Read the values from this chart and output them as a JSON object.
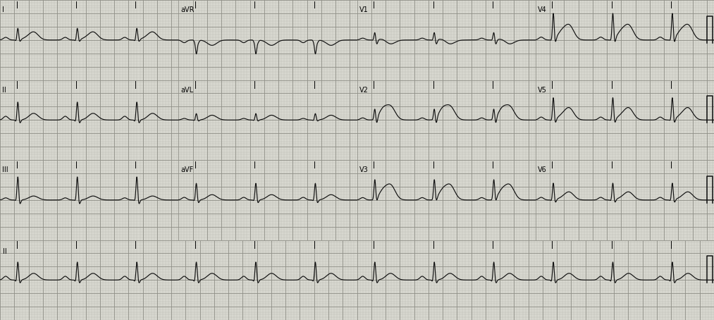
{
  "fig_width": 10.13,
  "fig_height": 4.54,
  "dpi": 100,
  "bg_color": "#d8d8d0",
  "minor_grid_color": "#b8b8b0",
  "major_grid_color": "#909088",
  "ecg_color": "#111111",
  "ecg_linewidth": 0.85,
  "hr": 72,
  "fs": 500,
  "seg_duration": 2.5,
  "rhythm_duration": 10.0,
  "y_range": 1.5,
  "label_fontsize": 7,
  "minor_grid_lw": 0.25,
  "major_grid_lw": 0.6,
  "leads_layout": [
    [
      "I",
      "aVR",
      "V1",
      "V4"
    ],
    [
      "II",
      "aVL",
      "V2",
      "V5"
    ],
    [
      "III",
      "aVF",
      "V3",
      "V6"
    ],
    [
      "II"
    ]
  ],
  "lead_params": {
    "I": {
      "qrs": 0.45,
      "p": 0.1,
      "t": 0.3,
      "st": 0.05,
      "t_inv": false,
      "deep_s": false,
      "q": 0.05
    },
    "II": {
      "qrs": 0.7,
      "p": 0.14,
      "t": 0.25,
      "st": 0.0,
      "t_inv": false,
      "deep_s": false,
      "q": 0.08
    },
    "III": {
      "qrs": 0.9,
      "p": 0.08,
      "t": 0.15,
      "st": 0.0,
      "t_inv": false,
      "deep_s": false,
      "q": 0.05
    },
    "aVR": {
      "qrs": -0.5,
      "p": -0.1,
      "t": -0.2,
      "st": 0.0,
      "t_inv": true,
      "deep_s": false,
      "q": 0.05
    },
    "aVL": {
      "qrs": 0.25,
      "p": 0.06,
      "t": 0.18,
      "st": 0.0,
      "t_inv": false,
      "deep_s": false,
      "q": 0.03
    },
    "aVF": {
      "qrs": 0.65,
      "p": 0.1,
      "t": 0.2,
      "st": 0.0,
      "t_inv": false,
      "deep_s": false,
      "q": 0.05
    },
    "V1": {
      "qrs": 0.3,
      "p": 0.07,
      "t": -0.15,
      "st": 0.05,
      "t_inv": true,
      "deep_s": true,
      "q": 0.02
    },
    "V2": {
      "qrs": 0.4,
      "p": 0.08,
      "t": 0.5,
      "st": 0.35,
      "t_inv": false,
      "deep_s": true,
      "q": 0.02
    },
    "V3": {
      "qrs": 0.75,
      "p": 0.09,
      "t": 0.55,
      "st": 0.3,
      "t_inv": false,
      "deep_s": false,
      "q": 0.03
    },
    "V4": {
      "qrs": 1.0,
      "p": 0.11,
      "t": 0.55,
      "st": 0.25,
      "t_inv": false,
      "deep_s": false,
      "q": 0.05
    },
    "V5": {
      "qrs": 0.85,
      "p": 0.11,
      "t": 0.45,
      "st": 0.12,
      "t_inv": false,
      "deep_s": false,
      "q": 0.05
    },
    "V6": {
      "qrs": 0.65,
      "p": 0.1,
      "t": 0.3,
      "st": 0.05,
      "t_inv": false,
      "deep_s": false,
      "q": 0.05
    }
  }
}
